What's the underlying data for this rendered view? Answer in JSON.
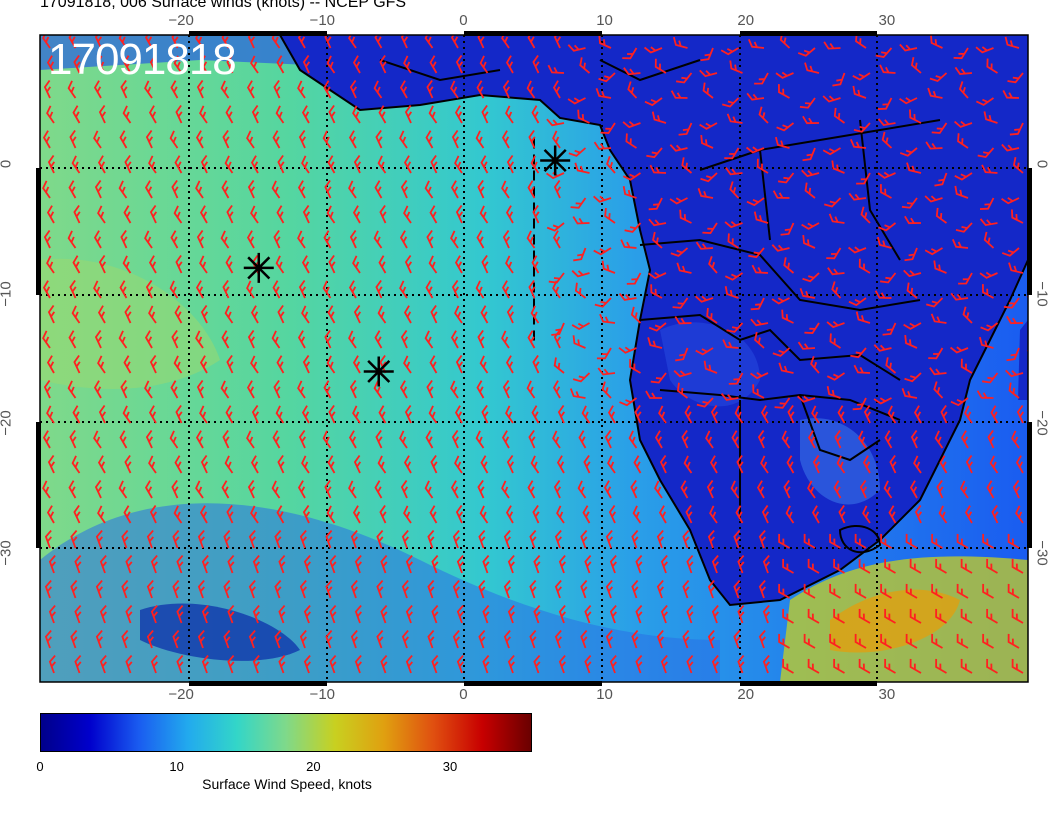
{
  "title": "17091818, 006 Surface winds (knots) -- NCEP GFS",
  "stamp": "17091818",
  "map": {
    "projection": "cylindrical-equidistant",
    "lon_range": [
      -30,
      40
    ],
    "lat_range": [
      -40,
      10
    ],
    "lon_ticks": [
      -20,
      -10,
      0,
      10,
      20,
      30
    ],
    "lat_ticks": [
      0,
      -10,
      -20,
      -30
    ],
    "lon_tick_labels": [
      "−20",
      "−10",
      "0",
      "10",
      "20",
      "30"
    ],
    "lat_tick_labels": [
      "0",
      "−10",
      "−20",
      "−30"
    ],
    "grid": "dotted",
    "barb_color": "#ff2020",
    "markers": [
      {
        "name": "star-marker",
        "lon": -14.5,
        "lat": -8
      },
      {
        "name": "star-marker",
        "lon": -6,
        "lat": -16
      },
      {
        "name": "star-marker",
        "lon": 6.5,
        "lat": 0.3
      }
    ],
    "dashed_line": {
      "lon": 5,
      "lat_from": -14,
      "lat_to": 2
    }
  },
  "colorbar": {
    "label": "Surface Wind Speed, knots",
    "ticks": [
      "0",
      "10",
      "20",
      "30"
    ],
    "tick_values": [
      0,
      10,
      20,
      30
    ],
    "max": 36,
    "colors": [
      "#00008a",
      "#0000cc",
      "#1a5cf0",
      "#22aaee",
      "#33d6c8",
      "#7fd98a",
      "#c8d020",
      "#e0a010",
      "#e05010",
      "#c80000",
      "#6a0000"
    ]
  }
}
